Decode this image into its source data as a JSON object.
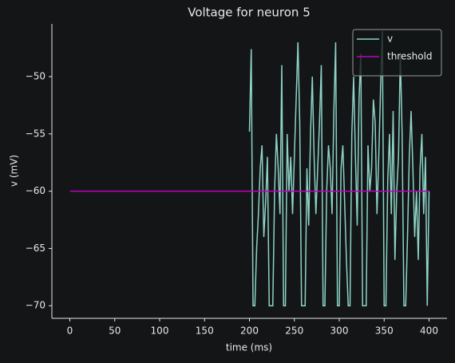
{
  "chart_data": {
    "type": "line",
    "title": "Voltage for neuron 5",
    "xlabel": "time (ms)",
    "ylabel": "v (mV)",
    "series": [
      {
        "name": "v",
        "color": "#8dd3c7",
        "x": [
          200,
          202,
          204,
          206,
          208,
          210,
          212,
          214,
          216,
          218,
          220,
          222,
          224,
          226,
          228,
          230,
          232,
          234,
          236,
          238,
          240,
          242,
          244,
          246,
          248,
          250,
          252,
          254,
          256,
          258,
          260,
          262,
          264,
          266,
          268,
          270,
          272,
          274,
          276,
          278,
          280,
          282,
          284,
          286,
          288,
          290,
          292,
          294,
          296,
          298,
          300,
          302,
          304,
          306,
          308,
          310,
          312,
          314,
          316,
          318,
          320,
          322,
          324,
          326,
          328,
          330,
          332,
          334,
          336,
          338,
          340,
          342,
          344,
          346,
          348,
          350,
          352,
          354,
          356,
          358,
          360,
          362,
          364,
          366,
          368,
          370,
          372,
          374,
          376,
          378,
          380,
          382,
          384,
          386,
          388,
          390,
          392,
          394,
          396,
          398,
          400
        ],
        "values": [
          -54.8,
          -47.6,
          -70,
          -70,
          -65,
          -62,
          -58,
          -56,
          -64,
          -61,
          -57,
          -70,
          -70,
          -70,
          -60,
          -55,
          -58,
          -62,
          -49,
          -70,
          -70,
          -55,
          -60,
          -57,
          -62,
          -57,
          -52,
          -47,
          -54,
          -70,
          -70,
          -70,
          -58,
          -63,
          -55,
          -50,
          -57,
          -62,
          -58,
          -54,
          -49,
          -70,
          -70,
          -60,
          -56,
          -58,
          -62,
          -53,
          -47,
          -70,
          -70,
          -58,
          -56,
          -61,
          -66,
          -70,
          -70,
          -55,
          -50,
          -57,
          -63,
          -52,
          -48,
          -70,
          -70,
          -70,
          -56,
          -60,
          -58,
          -52,
          -54,
          -62,
          -57,
          -51,
          -46,
          -70,
          -70,
          -59,
          -55,
          -62,
          -53,
          -66,
          -60,
          -57,
          -48,
          -55,
          -70,
          -70,
          -64,
          -57,
          -53,
          -58,
          -64,
          -60,
          -66,
          -58,
          -55,
          -62,
          -57,
          -70,
          -60
        ]
      },
      {
        "name": "threshold",
        "color": "#bf00bf",
        "x": [
          0,
          400
        ],
        "values": [
          -60,
          -60
        ]
      }
    ],
    "xlim": [
      -20,
      420
    ],
    "ylim": [
      -71.1,
      -45.4
    ],
    "xticks": [
      0,
      50,
      100,
      150,
      200,
      250,
      300,
      350,
      400
    ],
    "yticks": [
      {
        "value": -70,
        "label": "−70"
      },
      {
        "value": -65,
        "label": "−65"
      },
      {
        "value": -60,
        "label": "−60"
      },
      {
        "value": -55,
        "label": "−55"
      },
      {
        "value": -50,
        "label": "−50"
      }
    ],
    "legend": "upper right",
    "grid": false
  }
}
